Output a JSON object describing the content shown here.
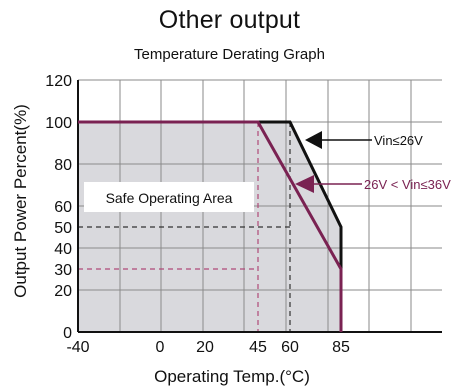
{
  "chart_data": {
    "type": "line",
    "title": "Other output",
    "subtitle": "Temperature Derating Graph",
    "xlabel": "Operating Temp.(°C)",
    "ylabel": "Output Power Percent(%)",
    "xlim": [
      -40,
      85
    ],
    "ylim": [
      0,
      120
    ],
    "x_ticks": [
      "-40",
      "0",
      "20",
      "45",
      "60",
      "85"
    ],
    "y_ticks": [
      "0",
      "20",
      "30",
      "40",
      "50",
      "60",
      "80",
      "100",
      "120"
    ],
    "grid": true,
    "series": [
      {
        "name": "Vin≤26V",
        "color": "#111111",
        "points": [
          [
            -40,
            100
          ],
          [
            60,
            100
          ],
          [
            85,
            50
          ],
          [
            85,
            0
          ]
        ]
      },
      {
        "name": "26V < Vin≤36V",
        "color": "#7a2252",
        "points": [
          [
            -40,
            100
          ],
          [
            45,
            100
          ],
          [
            85,
            30
          ],
          [
            85,
            0
          ]
        ]
      }
    ],
    "reference_lines": [
      {
        "x": 45,
        "y": 30,
        "color": "#b04a78"
      },
      {
        "x": 60,
        "y": 50,
        "color": "#333333"
      }
    ],
    "area_label": "Safe Operating Area",
    "colors": {
      "safe_area": "#d9d9dd",
      "grid": "#8a8a8a",
      "frame": "#111111"
    }
  }
}
